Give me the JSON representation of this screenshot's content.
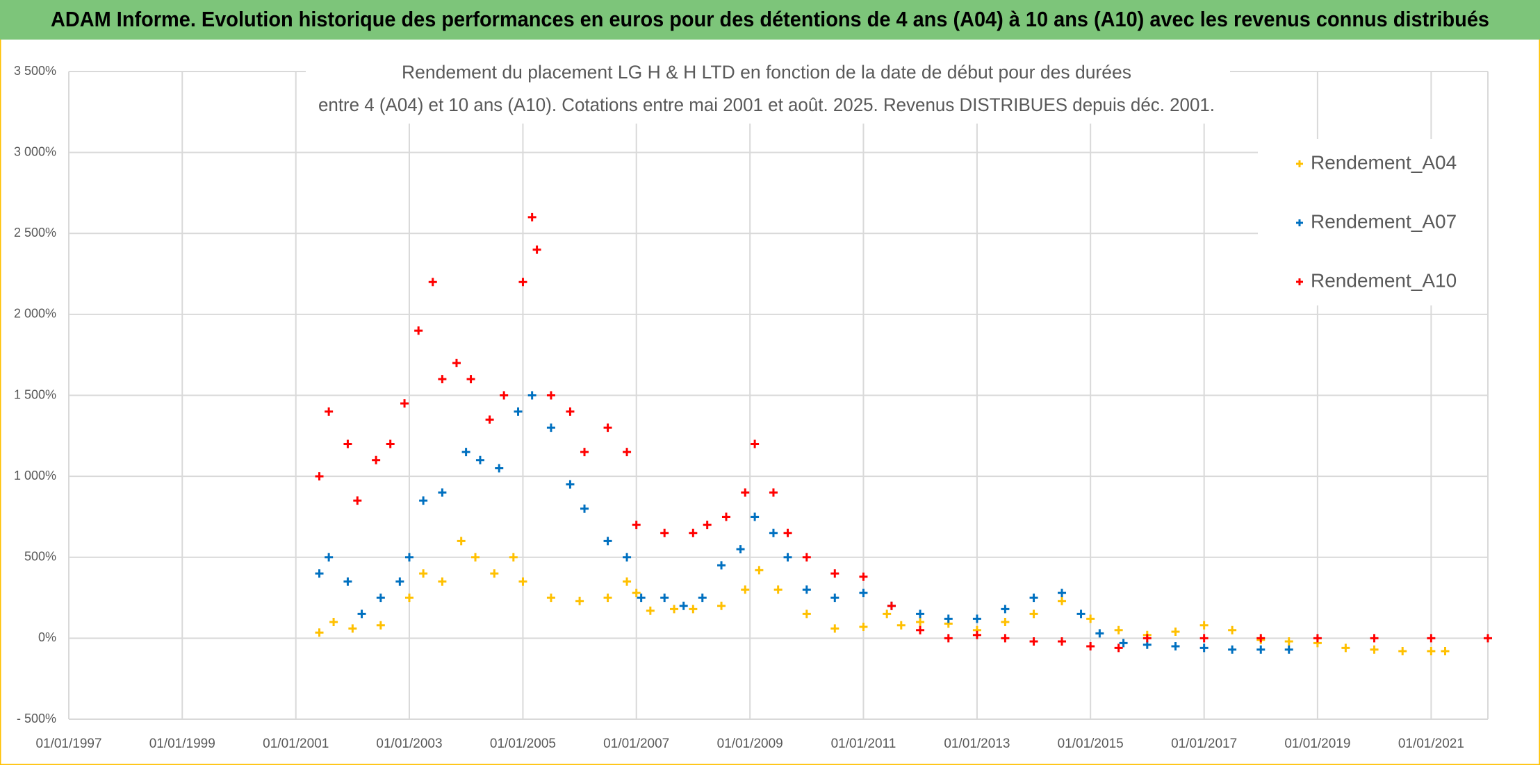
{
  "chart_data": {
    "type": "scatter",
    "title": "ADAM Informe. Evolution historique des performances en euros pour des détentions de 4 ans (A04) à 10 ans (A10) avec les revenus connus distribués",
    "subtitle_lines": [
      "Rendement du placement LG H & H LTD en fonction de la date de début pour des durées",
      "entre 4 (A04) et 10 ans (A10). Cotations entre mai 2001 et août. 2025. Revenus DISTRIBUES depuis déc. 2001."
    ],
    "xlim": [
      "01/01/1997",
      "01/01/2022"
    ],
    "xticks": [
      "01/01/1997",
      "01/01/1999",
      "01/01/2001",
      "01/01/2003",
      "01/01/2005",
      "01/01/2007",
      "01/01/2009",
      "01/01/2011",
      "01/01/2013",
      "01/01/2015",
      "01/01/2017",
      "01/01/2019",
      "01/01/2021"
    ],
    "ylim": [
      -500,
      3500
    ],
    "yticks": [
      {
        "value": -500,
        "label": "- 500%"
      },
      {
        "value": 0,
        "label": "0%"
      },
      {
        "value": 500,
        "label": "500%"
      },
      {
        "value": 1000,
        "label": "1 000%"
      },
      {
        "value": 1500,
        "label": "1 500%"
      },
      {
        "value": 2000,
        "label": "2 000%"
      },
      {
        "value": 2500,
        "label": "2 500%"
      },
      {
        "value": 3000,
        "label": "3 000%"
      },
      {
        "value": 3500,
        "label": "3 500%"
      }
    ],
    "grid": true,
    "legend": "upper right",
    "series": [
      {
        "name": "Rendement_A04",
        "color": "#ffc000",
        "x": [
          "01/06/2001",
          "01/09/2001",
          "01/01/2002",
          "01/07/2002",
          "01/01/2003",
          "01/04/2003",
          "01/08/2003",
          "01/12/2003",
          "01/03/2004",
          "01/07/2004",
          "01/11/2004",
          "01/01/2005",
          "01/07/2005",
          "01/01/2006",
          "01/07/2006",
          "01/11/2006",
          "01/01/2007",
          "01/04/2007",
          "01/09/2007",
          "01/01/2008",
          "01/07/2008",
          "01/12/2008",
          "01/03/2009",
          "01/07/2009",
          "01/01/2010",
          "01/07/2010",
          "01/01/2011",
          "01/06/2011",
          "01/09/2011",
          "01/01/2012",
          "01/07/2012",
          "01/01/2013",
          "01/07/2013",
          "01/01/2014",
          "01/07/2014",
          "01/01/2015",
          "01/07/2015",
          "01/01/2016",
          "01/07/2016",
          "01/01/2017",
          "01/07/2017",
          "01/01/2018",
          "01/07/2018",
          "01/01/2019",
          "01/07/2019",
          "01/01/2020",
          "01/07/2020",
          "01/01/2021",
          "01/04/2021"
        ],
        "values": [
          35,
          100,
          60,
          80,
          250,
          400,
          350,
          600,
          500,
          400,
          500,
          350,
          250,
          230,
          250,
          350,
          280,
          170,
          180,
          180,
          200,
          300,
          420,
          300,
          150,
          60,
          70,
          150,
          80,
          100,
          90,
          50,
          100,
          150,
          230,
          120,
          50,
          20,
          40,
          80,
          50,
          -10,
          -20,
          -30,
          -60,
          -70,
          -80,
          -80,
          -80
        ]
      },
      {
        "name": "Rendement_A07",
        "color": "#0070c0",
        "x": [
          "01/06/2001",
          "01/08/2001",
          "01/12/2001",
          "01/03/2002",
          "01/07/2002",
          "01/11/2002",
          "01/01/2003",
          "01/04/2003",
          "01/08/2003",
          "01/01/2004",
          "01/04/2004",
          "01/08/2004",
          "01/12/2004",
          "01/03/2005",
          "01/07/2005",
          "01/11/2005",
          "01/02/2006",
          "01/07/2006",
          "01/11/2006",
          "01/02/2007",
          "01/07/2007",
          "01/11/2007",
          "01/03/2008",
          "01/07/2008",
          "01/11/2008",
          "01/02/2009",
          "01/06/2009",
          "01/09/2009",
          "01/01/2010",
          "01/07/2010",
          "01/01/2011",
          "01/07/2011",
          "01/01/2012",
          "01/07/2012",
          "01/01/2013",
          "01/07/2013",
          "01/01/2014",
          "01/07/2014",
          "01/11/2014",
          "01/03/2015",
          "01/08/2015",
          "01/01/2016",
          "01/07/2016",
          "01/01/2017",
          "01/07/2017",
          "01/01/2018",
          "01/07/2018"
        ],
        "values": [
          400,
          500,
          350,
          150,
          250,
          350,
          500,
          850,
          900,
          1150,
          1100,
          1050,
          1400,
          1500,
          1300,
          950,
          800,
          600,
          500,
          250,
          250,
          200,
          250,
          450,
          550,
          750,
          650,
          500,
          300,
          250,
          280,
          200,
          150,
          120,
          120,
          180,
          250,
          280,
          150,
          30,
          -30,
          -40,
          -50,
          -60,
          -70,
          -70,
          -70
        ]
      },
      {
        "name": "Rendement_A10",
        "color": "#ff0000",
        "x": [
          "01/06/2001",
          "01/08/2001",
          "01/12/2001",
          "01/02/2002",
          "01/06/2002",
          "01/09/2002",
          "01/12/2002",
          "01/03/2003",
          "01/06/2003",
          "01/08/2003",
          "01/11/2003",
          "01/02/2004",
          "01/06/2004",
          "01/09/2004",
          "01/01/2005",
          "01/03/2005",
          "01/04/2005",
          "01/07/2005",
          "01/11/2005",
          "01/02/2006",
          "01/07/2006",
          "01/11/2006",
          "01/01/2007",
          "01/07/2007",
          "01/01/2008",
          "01/04/2008",
          "01/08/2008",
          "01/12/2008",
          "01/02/2009",
          "01/06/2009",
          "01/09/2009",
          "01/01/2010",
          "01/07/2010",
          "01/01/2011",
          "01/07/2011",
          "01/01/2012",
          "01/07/2012",
          "01/01/2013",
          "01/07/2013",
          "01/01/2014",
          "01/07/2014",
          "01/01/2015",
          "01/07/2015",
          "01/01/2016",
          "01/01/2017",
          "01/01/2018",
          "01/01/2019",
          "01/01/2020",
          "01/01/2021",
          "01/01/2022"
        ],
        "values": [
          1000,
          1400,
          1200,
          850,
          1100,
          1200,
          1450,
          1900,
          2200,
          1600,
          1700,
          1600,
          1350,
          1500,
          2200,
          2600,
          2400,
          1500,
          1400,
          1150,
          1300,
          1150,
          700,
          650,
          650,
          700,
          750,
          900,
          1200,
          900,
          650,
          500,
          400,
          380,
          200,
          50,
          0,
          20,
          0,
          -20,
          -20,
          -50,
          -60,
          0,
          0,
          0,
          0,
          0,
          0,
          0
        ]
      }
    ]
  }
}
